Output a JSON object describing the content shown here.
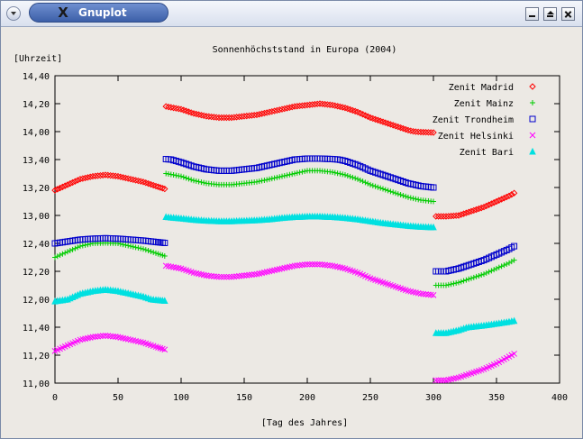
{
  "window": {
    "title": "Gnuplot",
    "app_icon": "x-window-icon",
    "menu_icon": "chevron-down-icon",
    "minimize_icon": "minimize-icon",
    "maximize_icon": "maximize-icon",
    "close_icon": "close-icon"
  },
  "chart_data": {
    "type": "scatter",
    "title": "Sonnenhöchststand in Europa (2004)",
    "xlabel": "[Tag des Jahres]",
    "ylabel": "[Uhrzeit]",
    "xlim": [
      0,
      400
    ],
    "ylim": [
      11.0,
      14.4
    ],
    "xticks": [
      "0",
      "50",
      "100",
      "150",
      "200",
      "250",
      "300",
      "350",
      "400"
    ],
    "yticks": [
      "11,00",
      "11,20",
      "11,40",
      "12,00",
      "12,20",
      "12,40",
      "13,00",
      "13,20",
      "13,40",
      "14,00",
      "14,20",
      "14,40"
    ],
    "grid": false,
    "legend_position": "top-right",
    "series": [
      {
        "name": "Zenit Madrid",
        "color": "#ff0000",
        "marker": "diamond",
        "segments": [
          {
            "x": [
              0,
              10,
              20,
              30,
              40,
              50,
              60,
              70,
              80,
              87
            ],
            "y": [
              13.18,
              13.22,
              13.26,
              13.28,
              13.29,
              13.28,
              13.26,
              13.24,
              13.21,
              13.19
            ]
          },
          {
            "x": [
              88,
              100,
              110,
              120,
              130,
              140,
              150,
              160,
              170,
              180,
              190,
              200,
              210,
              220,
              230,
              240,
              250,
              260,
              270,
              280,
              290,
              300
            ],
            "y": [
              14.18,
              14.16,
              14.13,
              14.11,
              14.1,
              14.1,
              14.11,
              14.12,
              14.14,
              14.16,
              14.18,
              14.19,
              14.2,
              14.19,
              14.17,
              14.14,
              14.1,
              14.07,
              14.04,
              14.01,
              13.99,
              13.98
            ]
          },
          {
            "x": [
              302,
              310,
              320,
              330,
              340,
              350,
              360,
              364
            ],
            "y": [
              12.98,
              12.98,
              13.0,
              13.03,
              13.06,
              13.1,
              13.14,
              13.16
            ]
          }
        ]
      },
      {
        "name": "Zenit Mainz",
        "color": "#00cc00",
        "marker": "plus",
        "segments": [
          {
            "x": [
              0,
              10,
              20,
              30,
              40,
              50,
              60,
              70,
              80,
              87
            ],
            "y": [
              12.3,
              12.34,
              12.38,
              12.4,
              12.41,
              12.4,
              12.38,
              12.36,
              12.33,
              12.31
            ]
          },
          {
            "x": [
              88,
              100,
              110,
              120,
              130,
              140,
              150,
              160,
              170,
              180,
              190,
              200,
              210,
              220,
              230,
              240,
              250,
              260,
              270,
              280,
              290,
              300
            ],
            "y": [
              13.3,
              13.28,
              13.25,
              13.23,
              13.22,
              13.22,
              13.23,
              13.24,
              13.26,
              13.28,
              13.3,
              13.32,
              13.32,
              13.31,
              13.29,
              13.26,
              13.22,
              13.19,
              13.16,
              13.13,
              13.11,
              13.1
            ]
          },
          {
            "x": [
              302,
              310,
              320,
              330,
              340,
              350,
              360,
              364
            ],
            "y": [
              12.1,
              12.1,
              12.12,
              12.15,
              12.18,
              12.22,
              12.26,
              12.28
            ]
          }
        ]
      },
      {
        "name": "Zenit Trondheim",
        "color": "#0000cc",
        "marker": "square",
        "segments": [
          {
            "x": [
              0,
              10,
              20,
              30,
              40,
              50,
              60,
              70,
              80,
              87
            ],
            "y": [
              12.4,
              12.44,
              12.48,
              12.5,
              12.51,
              12.5,
              12.48,
              12.46,
              12.43,
              12.41
            ]
          },
          {
            "x": [
              88,
              100,
              110,
              120,
              130,
              140,
              150,
              160,
              170,
              180,
              190,
              200,
              210,
              220,
              230,
              240,
              250,
              260,
              270,
              280,
              290,
              300
            ],
            "y": [
              13.41,
              13.38,
              13.35,
              13.33,
              13.32,
              13.32,
              13.33,
              13.34,
              13.36,
              13.38,
              13.4,
              13.42,
              13.42,
              13.41,
              13.39,
              13.36,
              13.32,
              13.29,
              13.26,
              13.23,
              13.21,
              13.2
            ]
          },
          {
            "x": [
              302,
              310,
              320,
              330,
              340,
              350,
              360,
              364
            ],
            "y": [
              12.2,
              12.2,
              12.22,
              12.25,
              12.28,
              12.32,
              12.36,
              12.38
            ]
          }
        ]
      },
      {
        "name": "Zenit Helsinki",
        "color": "#ff00ff",
        "marker": "cross",
        "segments": [
          {
            "x": [
              0,
              10,
              20,
              30,
              40,
              50,
              60,
              70,
              80,
              87
            ],
            "y": [
              11.23,
              11.27,
              11.31,
              11.33,
              11.34,
              11.33,
              11.31,
              11.29,
              11.26,
              11.24
            ]
          },
          {
            "x": [
              88,
              100,
              110,
              120,
              130,
              140,
              150,
              160,
              170,
              180,
              190,
              200,
              210,
              220,
              230,
              240,
              250,
              260,
              270,
              280,
              290,
              300
            ],
            "y": [
              12.24,
              12.22,
              12.19,
              12.17,
              12.16,
              12.16,
              12.17,
              12.18,
              12.2,
              12.22,
              12.24,
              12.25,
              12.25,
              12.24,
              12.22,
              12.19,
              12.15,
              12.12,
              12.09,
              12.06,
              12.04,
              12.03
            ]
          },
          {
            "x": [
              302,
              310,
              320,
              330,
              340,
              350,
              360,
              364
            ],
            "y": [
              11.02,
              11.02,
              11.04,
              11.07,
              11.1,
              11.14,
              11.19,
              11.21
            ]
          }
        ]
      },
      {
        "name": "Zenit Bari",
        "color": "#00e0e0",
        "marker": "triangle",
        "segments": [
          {
            "x": [
              0,
              10,
              20,
              30,
              40,
              50,
              60,
              70,
              80,
              87
            ],
            "y": [
              11.96,
              12.0,
              12.04,
              12.06,
              12.07,
              12.06,
              12.04,
              12.02,
              11.99,
              11.97
            ]
          },
          {
            "x": [
              88,
              100,
              110,
              120,
              130,
              140,
              150,
              160,
              170,
              180,
              190,
              200,
              210,
              220,
              230,
              240,
              250,
              260,
              270,
              280,
              290,
              300
            ],
            "y": [
              12.97,
              12.94,
              12.91,
              12.89,
              12.88,
              12.88,
              12.89,
              12.9,
              12.92,
              12.95,
              12.97,
              12.98,
              12.98,
              12.97,
              12.95,
              12.92,
              12.88,
              12.84,
              12.81,
              12.78,
              12.76,
              12.75
            ]
          },
          {
            "x": [
              302,
              310,
              320,
              330,
              340,
              350,
              360,
              364
            ],
            "y": [
              11.36,
              11.36,
              11.38,
              11.41,
              11.44,
              11.48,
              11.52,
              11.54
            ]
          }
        ]
      }
    ]
  }
}
